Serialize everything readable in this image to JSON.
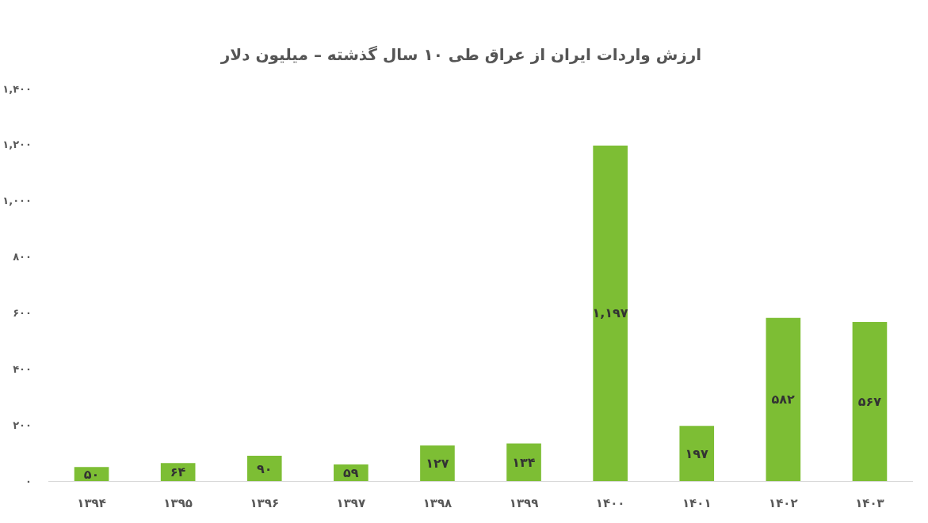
{
  "chart_data": {
    "type": "bar",
    "title": "ارزش واردات ایران از عراق طی ۱۰ سال گذشته – میلیون دلار",
    "categories": [
      "۱۳۹۴",
      "۱۳۹۵",
      "۱۳۹۶",
      "۱۳۹۷",
      "۱۳۹۸",
      "۱۳۹۹",
      "۱۴۰۰",
      "۱۴۰۱",
      "۱۴۰۲",
      "۱۴۰۳"
    ],
    "values": [
      50,
      64,
      90,
      59,
      127,
      134,
      1197,
      197,
      582,
      567
    ],
    "value_labels": [
      "۵۰",
      "۶۴",
      "۹۰",
      "۵۹",
      "۱۲۷",
      "۱۳۴",
      "۱,۱۹۷",
      "۱۹۷",
      "۵۸۲",
      "۵۶۷"
    ],
    "color": "#7dbe34",
    "ylim": [
      0,
      1400
    ],
    "yticks": [
      {
        "value": 0,
        "label": "۰"
      },
      {
        "value": 200,
        "label": "۲۰۰"
      },
      {
        "value": 400,
        "label": "۴۰۰"
      },
      {
        "value": 600,
        "label": "۶۰۰"
      },
      {
        "value": 800,
        "label": "۸۰۰"
      },
      {
        "value": 1000,
        "label": "۱,۰۰۰"
      },
      {
        "value": 1200,
        "label": "۱,۲۰۰"
      },
      {
        "value": 1400,
        "label": "۱,۴۰۰"
      }
    ],
    "grid": false
  }
}
